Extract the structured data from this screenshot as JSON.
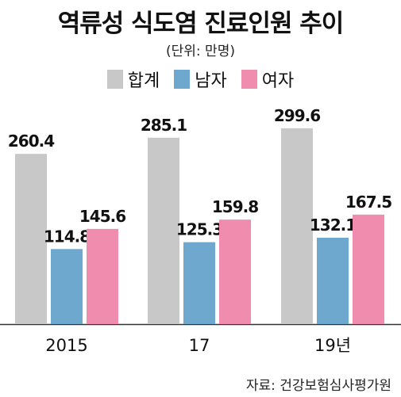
{
  "chart_data": {
    "type": "bar",
    "title": "역류성 식도염 진료인원 추이",
    "unit": "(단위: 만명)",
    "categories": [
      "2015",
      "17",
      "19년"
    ],
    "series": [
      {
        "name": "합계",
        "color": "#c8c8c8",
        "values": [
          260.4,
          285.1,
          299.6
        ]
      },
      {
        "name": "남자",
        "color": "#6ea8cf",
        "values": [
          114.8,
          125.3,
          132.1
        ]
      },
      {
        "name": "여자",
        "color": "#f08cae",
        "values": [
          145.6,
          159.8,
          167.5
        ]
      }
    ],
    "value_labels": [
      [
        "260.4",
        "285.1",
        "299.6"
      ],
      [
        "114.8",
        "125.3",
        "132.1"
      ],
      [
        "145.6",
        "159.8",
        "167.5"
      ]
    ],
    "legend_position": "top-center",
    "grid": false,
    "ylim": [
      0,
      320
    ]
  },
  "source": "자료: 건강보험심사평가원"
}
